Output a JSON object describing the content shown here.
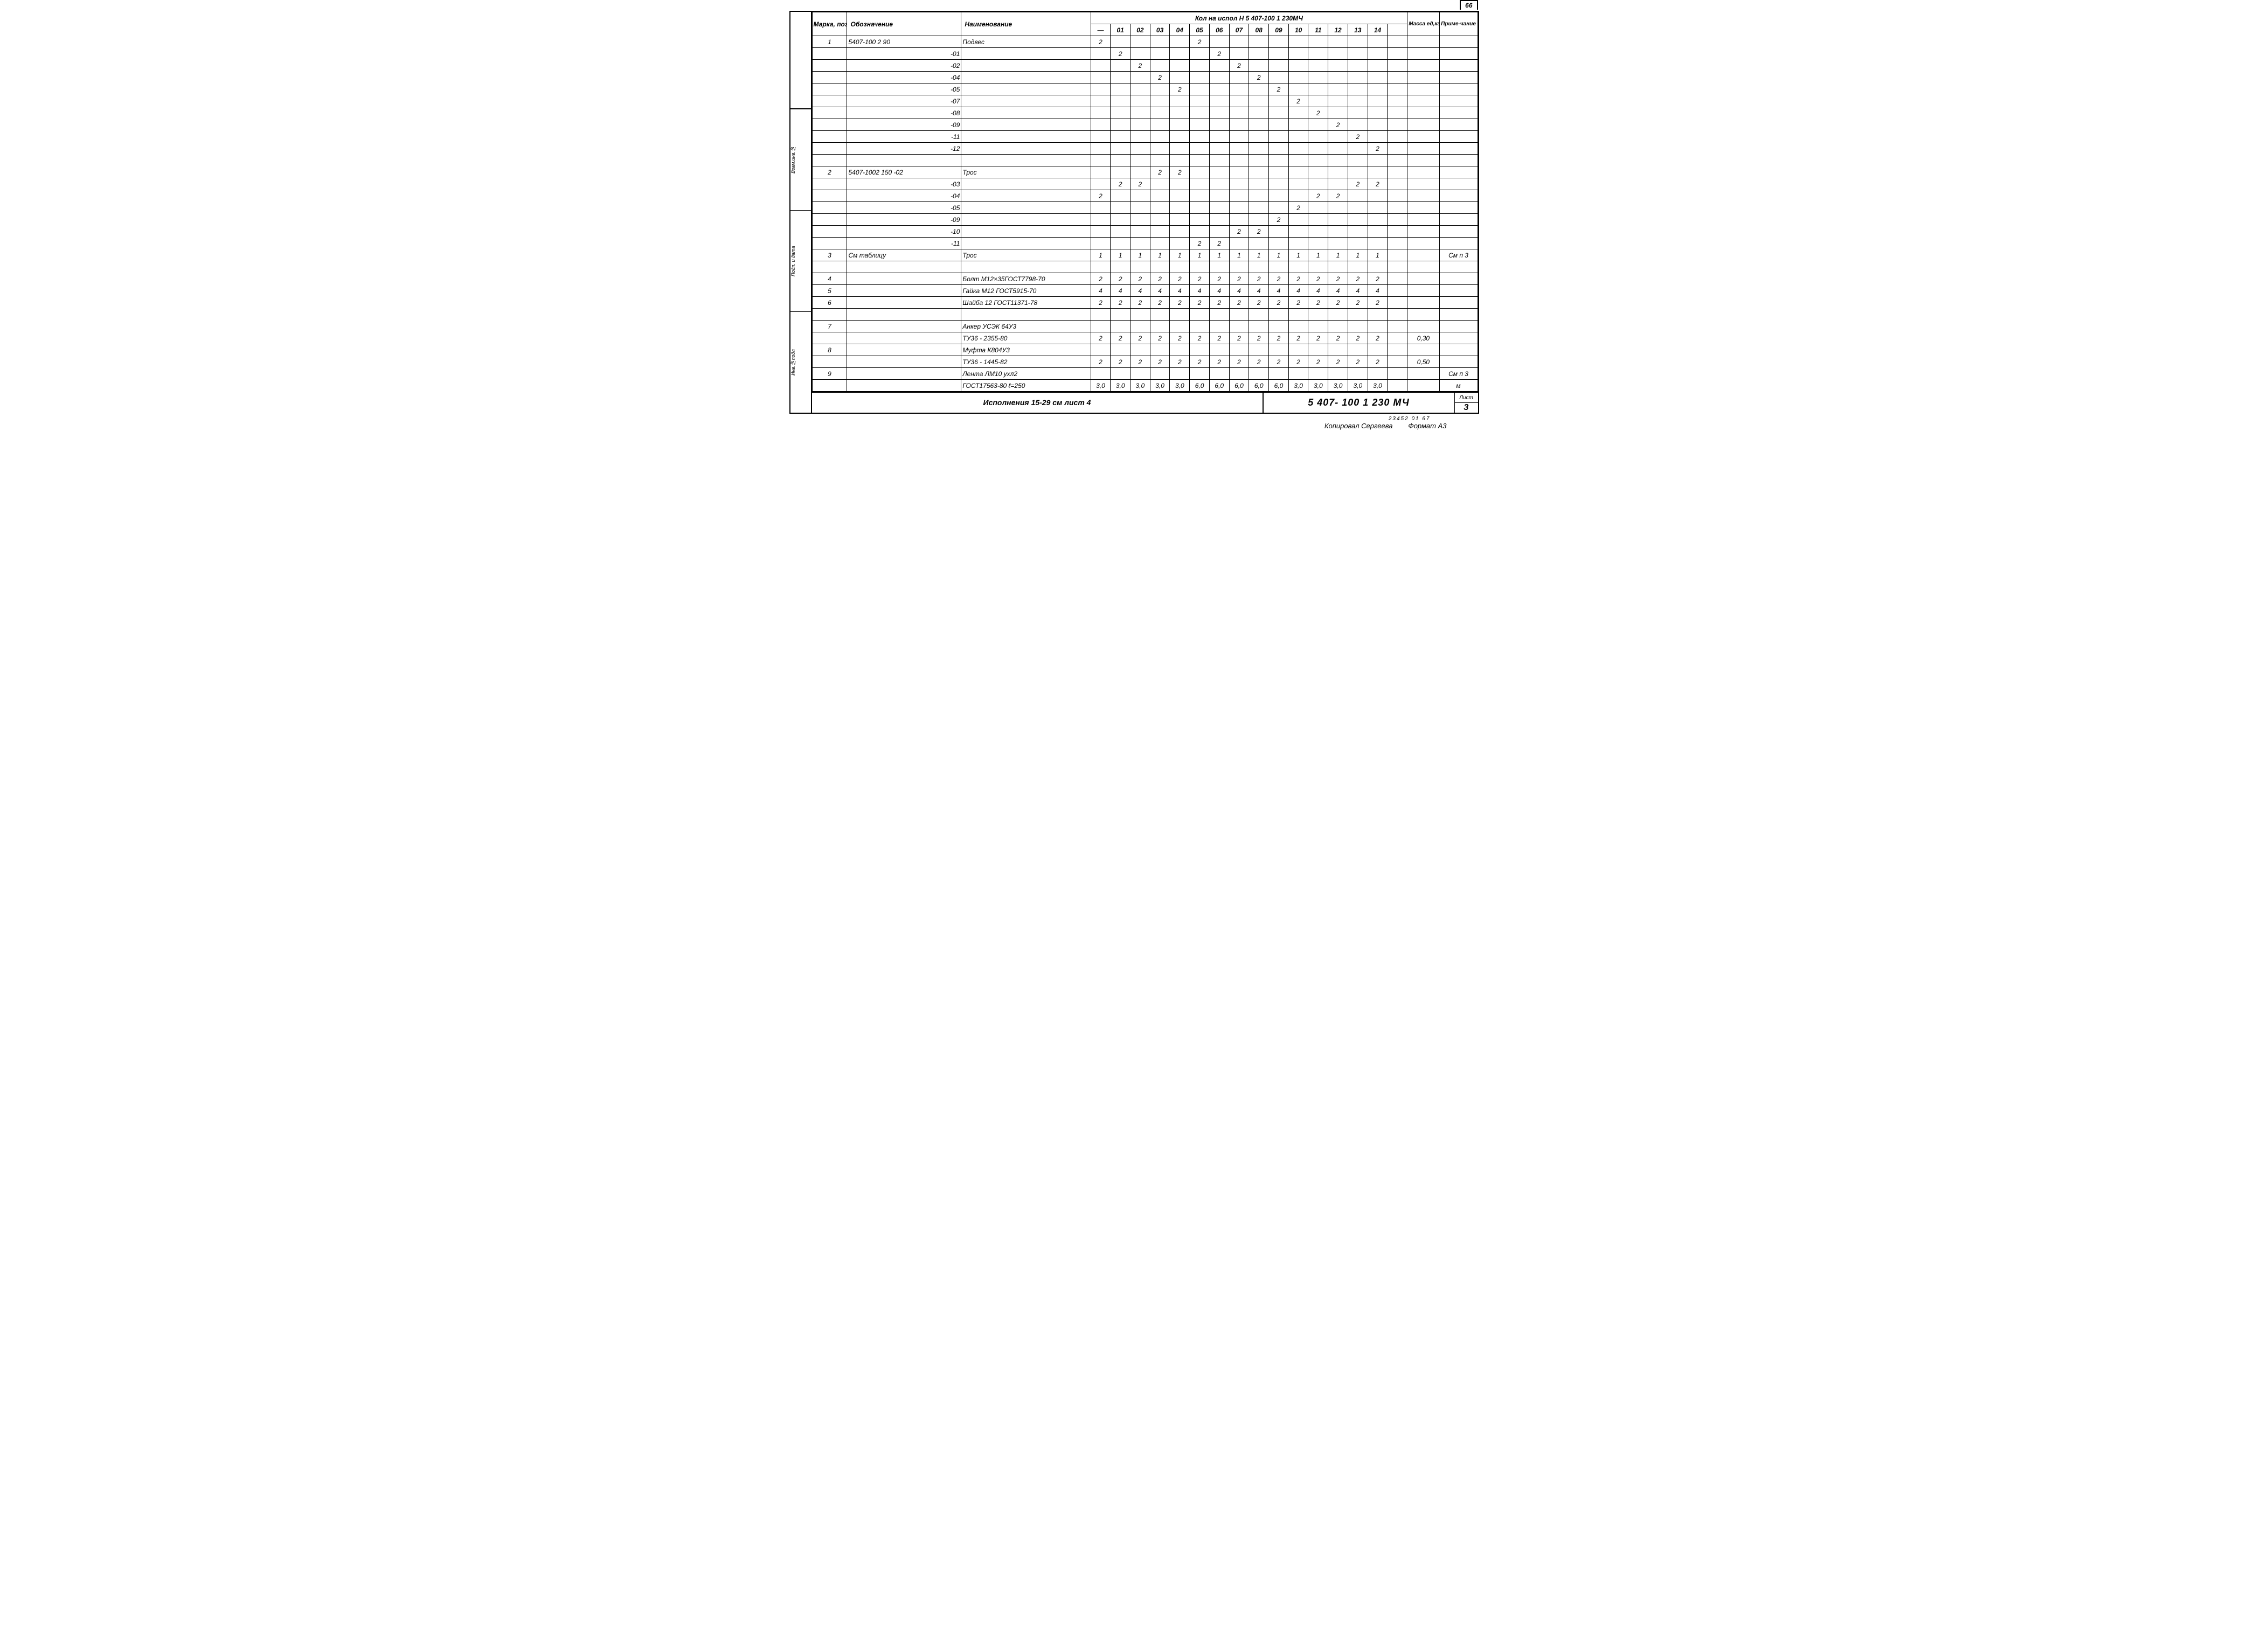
{
  "page_number": "66",
  "header": {
    "col_mark": "Марка, поз",
    "col_oboz": "Обозначение",
    "col_naim": "Наименование",
    "qty_title": "Кол на испол Н   5 407-100 1 230МЧ",
    "qty_cols": [
      "—",
      "01",
      "02",
      "03",
      "04",
      "05",
      "06",
      "07",
      "08",
      "09",
      "10",
      "11",
      "12",
      "13",
      "14",
      ""
    ],
    "col_mass": "Масса ед,кг",
    "col_note": "Приме-чание"
  },
  "rows": [
    {
      "mark": "1",
      "oboz": "5407-100 2 90",
      "naim": "Подвес",
      "q": [
        "2",
        "",
        "",
        "",
        "",
        "2",
        "",
        "",
        "",
        "",
        "",
        "",
        "",
        "",
        "",
        ""
      ],
      "mass": "",
      "note": ""
    },
    {
      "mark": "",
      "oboz": "-01",
      "naim": "",
      "q": [
        "",
        "2",
        "",
        "",
        "",
        "",
        "2",
        "",
        "",
        "",
        "",
        "",
        "",
        "",
        "",
        ""
      ],
      "mass": "",
      "note": ""
    },
    {
      "mark": "",
      "oboz": "-02",
      "naim": "",
      "q": [
        "",
        "",
        "2",
        "",
        "",
        "",
        "",
        "2",
        "",
        "",
        "",
        "",
        "",
        "",
        "",
        ""
      ],
      "mass": "",
      "note": ""
    },
    {
      "mark": "",
      "oboz": "-04",
      "naim": "",
      "q": [
        "",
        "",
        "",
        "2",
        "",
        "",
        "",
        "",
        "2",
        "",
        "",
        "",
        "",
        "",
        "",
        ""
      ],
      "mass": "",
      "note": ""
    },
    {
      "mark": "",
      "oboz": "-05",
      "naim": "",
      "q": [
        "",
        "",
        "",
        "",
        "2",
        "",
        "",
        "",
        "",
        "2",
        "",
        "",
        "",
        "",
        "",
        ""
      ],
      "mass": "",
      "note": ""
    },
    {
      "mark": "",
      "oboz": "-07",
      "naim": "",
      "q": [
        "",
        "",
        "",
        "",
        "",
        "",
        "",
        "",
        "",
        "",
        "2",
        "",
        "",
        "",
        "",
        ""
      ],
      "mass": "",
      "note": ""
    },
    {
      "mark": "",
      "oboz": "-08",
      "naim": "",
      "q": [
        "",
        "",
        "",
        "",
        "",
        "",
        "",
        "",
        "",
        "",
        "",
        "2",
        "",
        "",
        "",
        ""
      ],
      "mass": "",
      "note": ""
    },
    {
      "mark": "",
      "oboz": "-09",
      "naim": "",
      "q": [
        "",
        "",
        "",
        "",
        "",
        "",
        "",
        "",
        "",
        "",
        "",
        "",
        "2",
        "",
        "",
        ""
      ],
      "mass": "",
      "note": ""
    },
    {
      "mark": "",
      "oboz": "-11",
      "naim": "",
      "q": [
        "",
        "",
        "",
        "",
        "",
        "",
        "",
        "",
        "",
        "",
        "",
        "",
        "",
        "2",
        "",
        ""
      ],
      "mass": "",
      "note": ""
    },
    {
      "mark": "",
      "oboz": "-12",
      "naim": "",
      "q": [
        "",
        "",
        "",
        "",
        "",
        "",
        "",
        "",
        "",
        "",
        "",
        "",
        "",
        "",
        "2",
        ""
      ],
      "mass": "",
      "note": ""
    },
    {
      "mark": "",
      "oboz": "",
      "naim": "",
      "q": [
        "",
        "",
        "",
        "",
        "",
        "",
        "",
        "",
        "",
        "",
        "",
        "",
        "",
        "",
        "",
        ""
      ],
      "mass": "",
      "note": ""
    },
    {
      "mark": "2",
      "oboz": "5407-1002 150  -02",
      "naim": "Трос",
      "q": [
        "",
        "",
        "",
        "2",
        "2",
        "",
        "",
        "",
        "",
        "",
        "",
        "",
        "",
        "",
        "",
        ""
      ],
      "mass": "",
      "note": ""
    },
    {
      "mark": "",
      "oboz": "-03",
      "naim": "",
      "q": [
        "",
        "2",
        "2",
        "",
        "",
        "",
        "",
        "",
        "",
        "",
        "",
        "",
        "",
        "2",
        "2",
        ""
      ],
      "mass": "",
      "note": ""
    },
    {
      "mark": "",
      "oboz": "-04",
      "naim": "",
      "q": [
        "2",
        "",
        "",
        "",
        "",
        "",
        "",
        "",
        "",
        "",
        "",
        "2",
        "2",
        "",
        "",
        ""
      ],
      "mass": "",
      "note": ""
    },
    {
      "mark": "",
      "oboz": "-05",
      "naim": "",
      "q": [
        "",
        "",
        "",
        "",
        "",
        "",
        "",
        "",
        "",
        "",
        "2",
        "",
        "",
        "",
        "",
        ""
      ],
      "mass": "",
      "note": ""
    },
    {
      "mark": "",
      "oboz": "-09",
      "naim": "",
      "q": [
        "",
        "",
        "",
        "",
        "",
        "",
        "",
        "",
        "",
        "2",
        "",
        "",
        "",
        "",
        "",
        ""
      ],
      "mass": "",
      "note": ""
    },
    {
      "mark": "",
      "oboz": "-10",
      "naim": "",
      "q": [
        "",
        "",
        "",
        "",
        "",
        "",
        "",
        "2",
        "2",
        "",
        "",
        "",
        "",
        "",
        "",
        ""
      ],
      "mass": "",
      "note": ""
    },
    {
      "mark": "",
      "oboz": "-11",
      "naim": "",
      "q": [
        "",
        "",
        "",
        "",
        "",
        "2",
        "2",
        "",
        "",
        "",
        "",
        "",
        "",
        "",
        "",
        ""
      ],
      "mass": "",
      "note": ""
    },
    {
      "mark": "3",
      "oboz": "См таблицу",
      "naim": "Трос",
      "q": [
        "1",
        "1",
        "1",
        "1",
        "1",
        "1",
        "1",
        "1",
        "1",
        "1",
        "1",
        "1",
        "1",
        "1",
        "1",
        ""
      ],
      "mass": "",
      "note": "См п 3"
    },
    {
      "mark": "",
      "oboz": "",
      "naim": "",
      "q": [
        "",
        "",
        "",
        "",
        "",
        "",
        "",
        "",
        "",
        "",
        "",
        "",
        "",
        "",
        "",
        ""
      ],
      "mass": "",
      "note": ""
    },
    {
      "mark": "4",
      "oboz": "",
      "naim": "Болт М12×35ГОСТ7798-70",
      "q": [
        "2",
        "2",
        "2",
        "2",
        "2",
        "2",
        "2",
        "2",
        "2",
        "2",
        "2",
        "2",
        "2",
        "2",
        "2",
        ""
      ],
      "mass": "",
      "note": ""
    },
    {
      "mark": "5",
      "oboz": "",
      "naim": "Гайка М12 ГОСТ5915-70",
      "q": [
        "4",
        "4",
        "4",
        "4",
        "4",
        "4",
        "4",
        "4",
        "4",
        "4",
        "4",
        "4",
        "4",
        "4",
        "4",
        ""
      ],
      "mass": "",
      "note": ""
    },
    {
      "mark": "6",
      "oboz": "",
      "naim": "Шайба 12 ГОСТ11371-78",
      "q": [
        "2",
        "2",
        "2",
        "2",
        "2",
        "2",
        "2",
        "2",
        "2",
        "2",
        "2",
        "2",
        "2",
        "2",
        "2",
        ""
      ],
      "mass": "",
      "note": ""
    },
    {
      "mark": "",
      "oboz": "",
      "naim": "",
      "q": [
        "",
        "",
        "",
        "",
        "",
        "",
        "",
        "",
        "",
        "",
        "",
        "",
        "",
        "",
        "",
        ""
      ],
      "mass": "",
      "note": ""
    },
    {
      "mark": "7",
      "oboz": "",
      "naim": "Анкер УСЭК 64У3",
      "q": [
        "",
        "",
        "",
        "",
        "",
        "",
        "",
        "",
        "",
        "",
        "",
        "",
        "",
        "",
        "",
        ""
      ],
      "mass": "",
      "note": ""
    },
    {
      "mark": "",
      "oboz": "",
      "naim": "ТУ36 - 2355-80",
      "q": [
        "2",
        "2",
        "2",
        "2",
        "2",
        "2",
        "2",
        "2",
        "2",
        "2",
        "2",
        "2",
        "2",
        "2",
        "2",
        ""
      ],
      "mass": "0,30",
      "note": ""
    },
    {
      "mark": "8",
      "oboz": "",
      "naim": "Муфта  К804У3",
      "q": [
        "",
        "",
        "",
        "",
        "",
        "",
        "",
        "",
        "",
        "",
        "",
        "",
        "",
        "",
        "",
        ""
      ],
      "mass": "",
      "note": ""
    },
    {
      "mark": "",
      "oboz": "",
      "naim": "ТУ36 - 1445-82",
      "q": [
        "2",
        "2",
        "2",
        "2",
        "2",
        "2",
        "2",
        "2",
        "2",
        "2",
        "2",
        "2",
        "2",
        "2",
        "2",
        ""
      ],
      "mass": "0,50",
      "note": ""
    },
    {
      "mark": "9",
      "oboz": "",
      "naim": "Лента ЛМ10 ухл2",
      "q": [
        "",
        "",
        "",
        "",
        "",
        "",
        "",
        "",
        "",
        "",
        "",
        "",
        "",
        "",
        "",
        ""
      ],
      "mass": "",
      "note": "См п 3"
    },
    {
      "mark": "",
      "oboz": "",
      "naim": "ГОСТ17563-80 ℓ=250",
      "q": [
        "3,0",
        "3,0",
        "3,0",
        "3,0",
        "3,0",
        "6,0",
        "6,0",
        "6,0",
        "6,0",
        "6,0",
        "3,0",
        "3,0",
        "3,0",
        "3,0",
        "3,0",
        ""
      ],
      "mass": "",
      "note": "м"
    }
  ],
  "footer": {
    "note_text": "Исполнения  15-29  см  лист 4",
    "doc_number": "5 407- 100 1 230 МЧ",
    "sheet_label": "Лист",
    "sheet_num": "3",
    "under_small": "23452 01    67",
    "under_left": "Копировал Сергеева",
    "under_right": "Формат А3"
  },
  "side_labels": [
    "Инв.№подл",
    "Подп. и дата",
    "Взам.инв.№"
  ]
}
